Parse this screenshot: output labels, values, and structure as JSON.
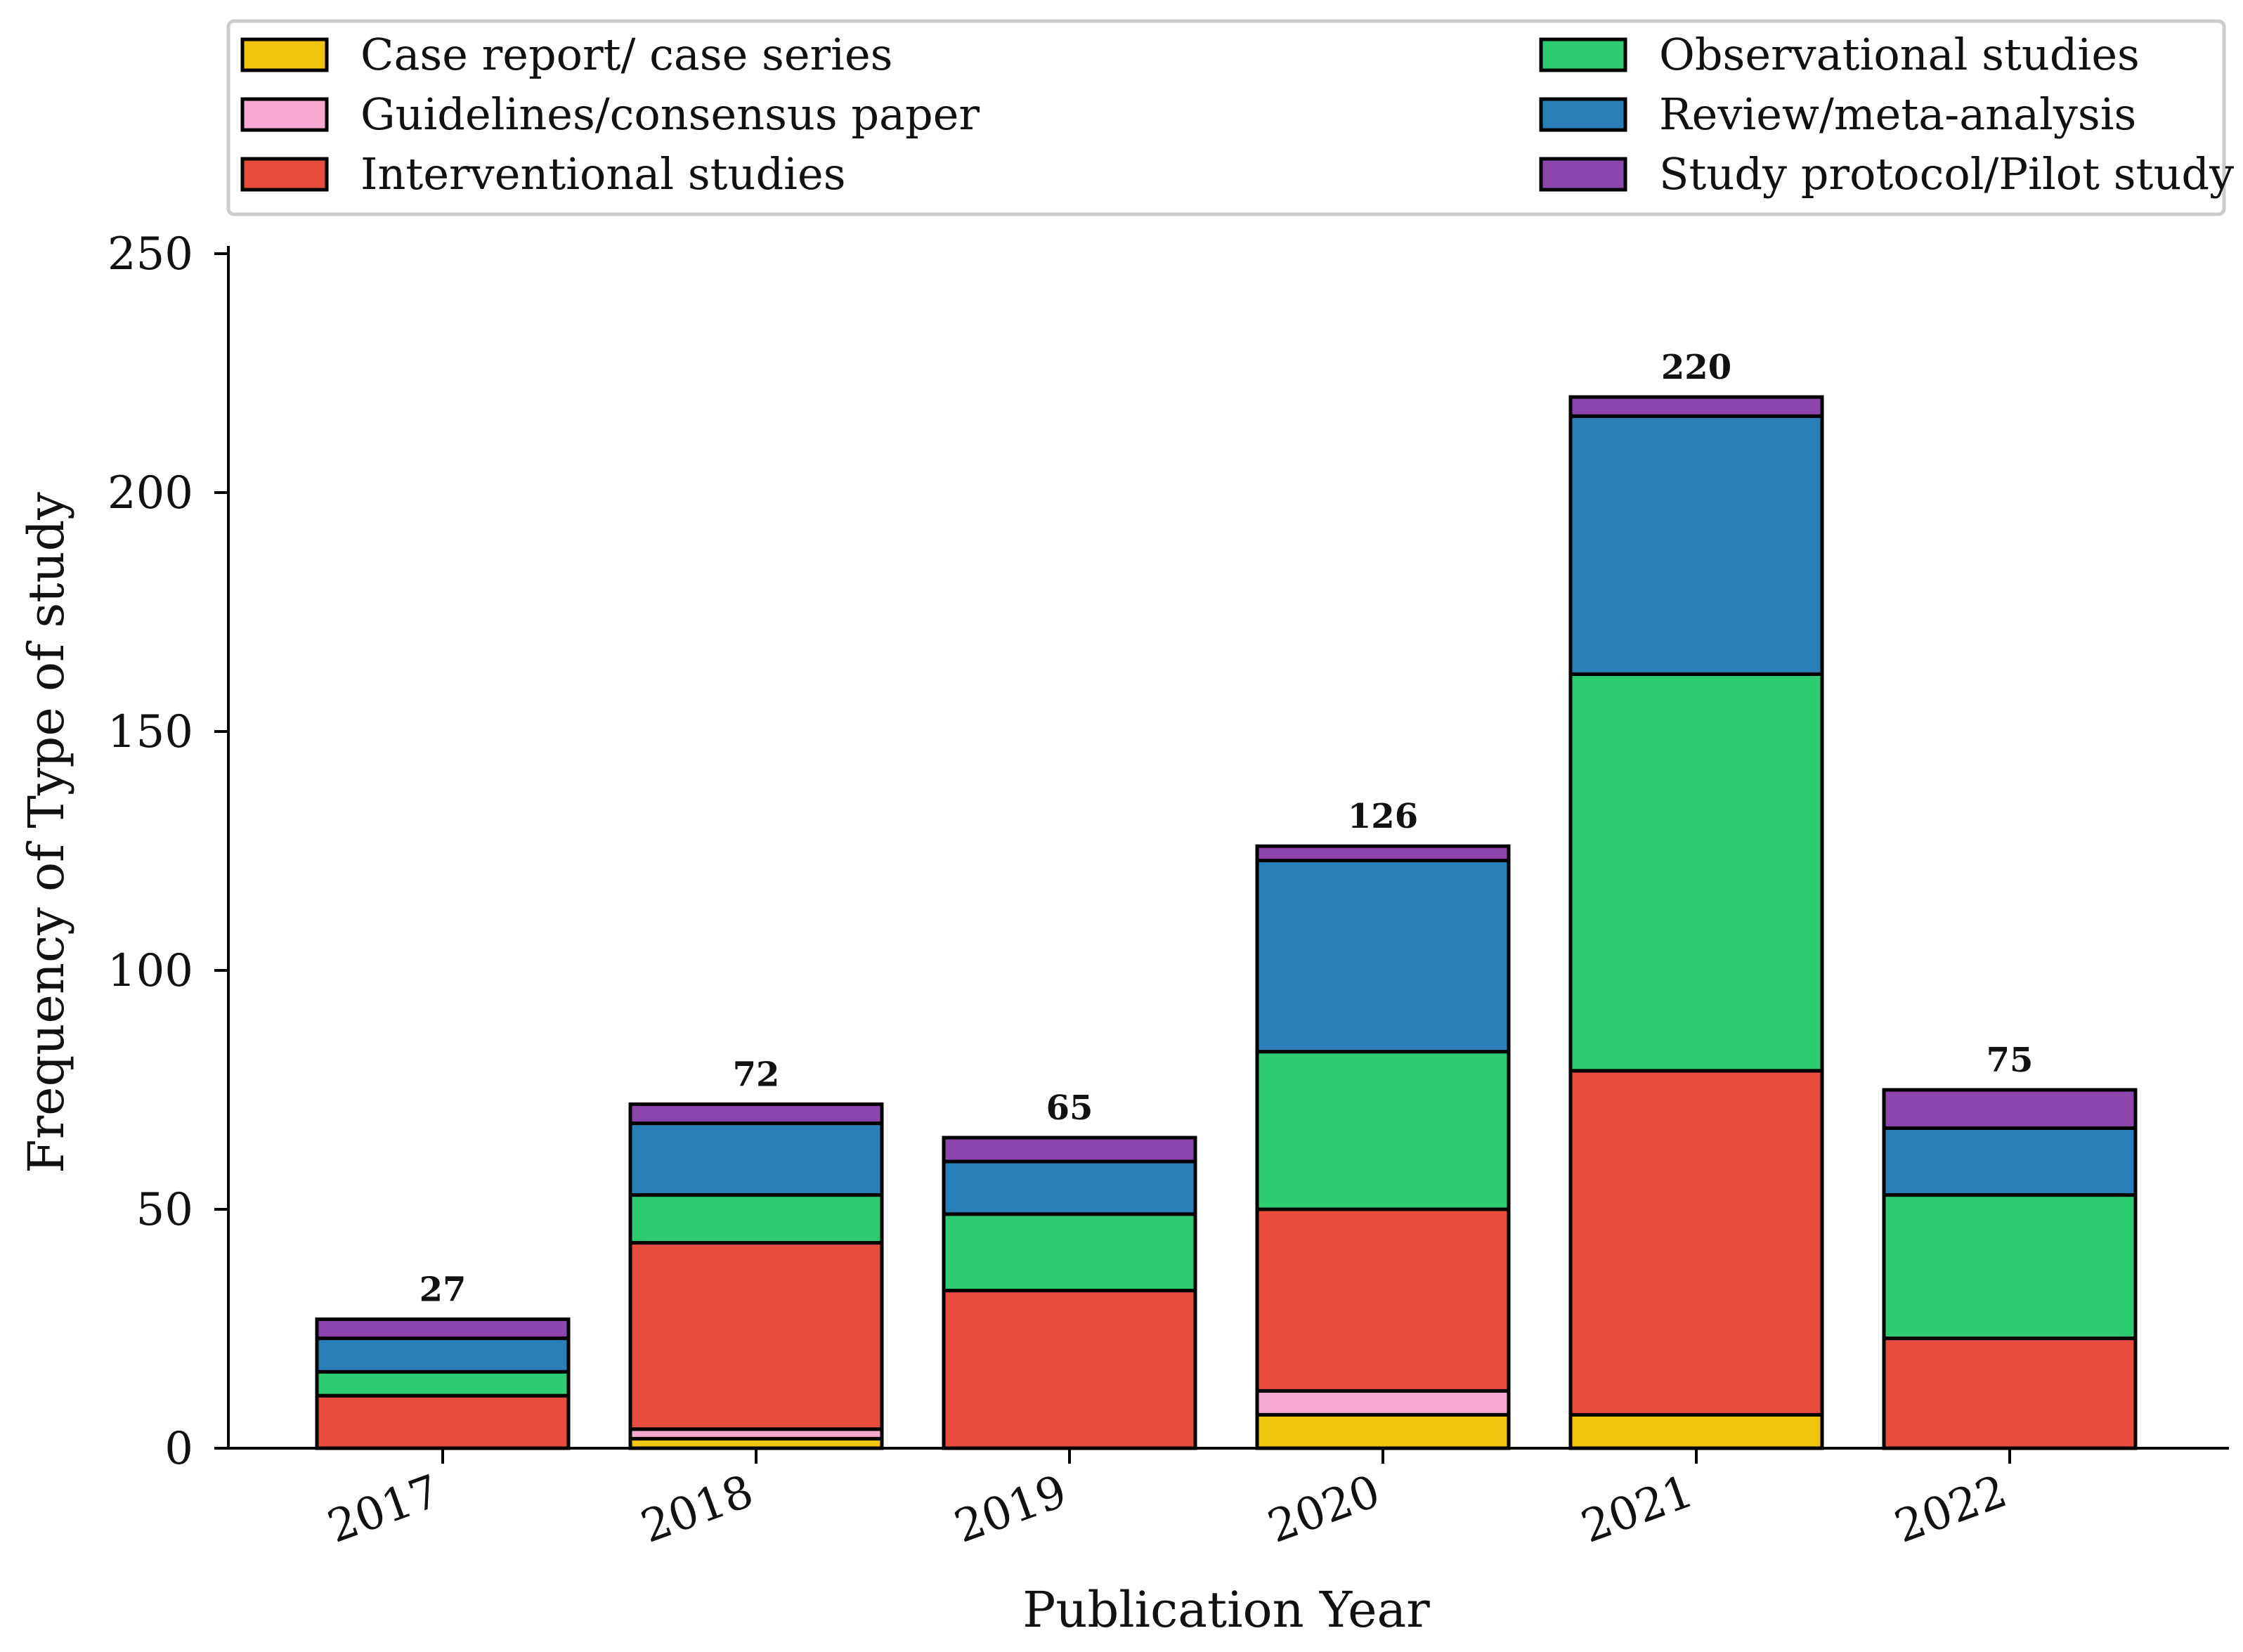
{
  "chart_data": {
    "type": "bar",
    "stacked": true,
    "title": "",
    "xlabel": "Publication Year",
    "ylabel": "Frequency of Type of study",
    "ylim": [
      0,
      250
    ],
    "yticks": [
      0,
      50,
      100,
      150,
      200,
      250
    ],
    "categories": [
      "2017",
      "2018",
      "2019",
      "2020",
      "2021",
      "2022"
    ],
    "series": [
      {
        "name": "Case report/ case series",
        "color": "#f1c40f",
        "values": [
          0,
          2,
          0,
          7,
          7,
          0
        ]
      },
      {
        "name": "Guidelines/consensus paper",
        "color": "#f5a9d0",
        "values": [
          0,
          2,
          0,
          5,
          0,
          0
        ]
      },
      {
        "name": "Interventional studies",
        "color": "#e74c3c",
        "values": [
          11,
          39,
          33,
          38,
          72,
          23
        ]
      },
      {
        "name": "Observational studies",
        "color": "#2ecc71",
        "values": [
          5,
          10,
          16,
          33,
          83,
          30
        ]
      },
      {
        "name": "Review/meta-analysis",
        "color": "#2980b9",
        "values": [
          7,
          15,
          11,
          40,
          54,
          14
        ]
      },
      {
        "name": "Study protocol/Pilot study",
        "color": "#8e44ad",
        "values": [
          4,
          4,
          5,
          3,
          4,
          8
        ]
      }
    ],
    "totals": [
      27,
      72,
      65,
      126,
      220,
      75
    ],
    "legend_position": "top"
  }
}
